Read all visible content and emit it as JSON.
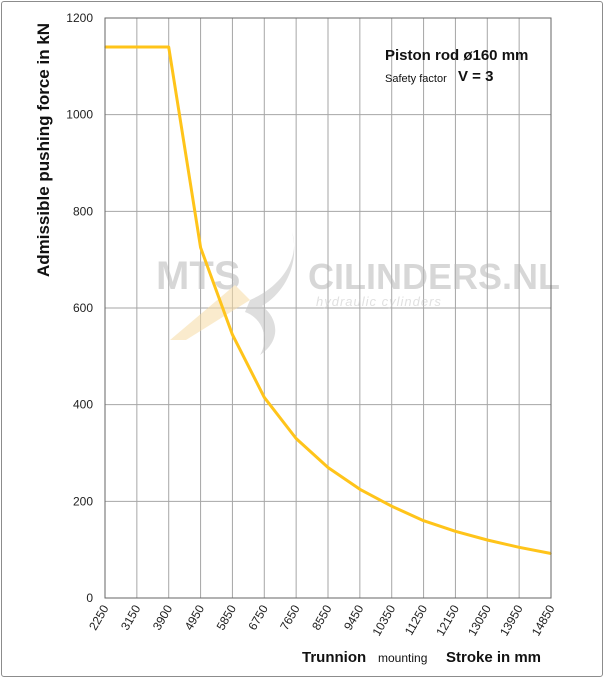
{
  "chart_data": {
    "type": "line",
    "title": "",
    "ylabel": "Admissible  pushing  force in kN",
    "xlabel_left": "Trunnion",
    "xlabel_sub": "mounting",
    "xlabel_right": "Stroke in mm",
    "ylim": [
      0,
      1200
    ],
    "yticks": [
      0,
      200,
      400,
      600,
      800,
      1000,
      1200
    ],
    "categories": [
      "2250",
      "3150",
      "3900",
      "4950",
      "5850",
      "6750",
      "7650",
      "8550",
      "9450",
      "10350",
      "11250",
      "12150",
      "13050",
      "13950",
      "14850"
    ],
    "series": [
      {
        "values": [
          1140,
          1140,
          1140,
          725,
          545,
          415,
          330,
          270,
          225,
          190,
          160,
          138,
          120,
          105,
          92
        ]
      }
    ],
    "grid": true,
    "line_color": "#ffc41a",
    "annotations": {
      "piston_rod": "Piston rod ø160 mm",
      "safety_label": "Safety factor",
      "safety_value": "V = 3"
    },
    "watermark": {
      "brand": "MTS",
      "name": "CILINDERS.NL",
      "tagline": "hydraulic  cylinders"
    }
  }
}
